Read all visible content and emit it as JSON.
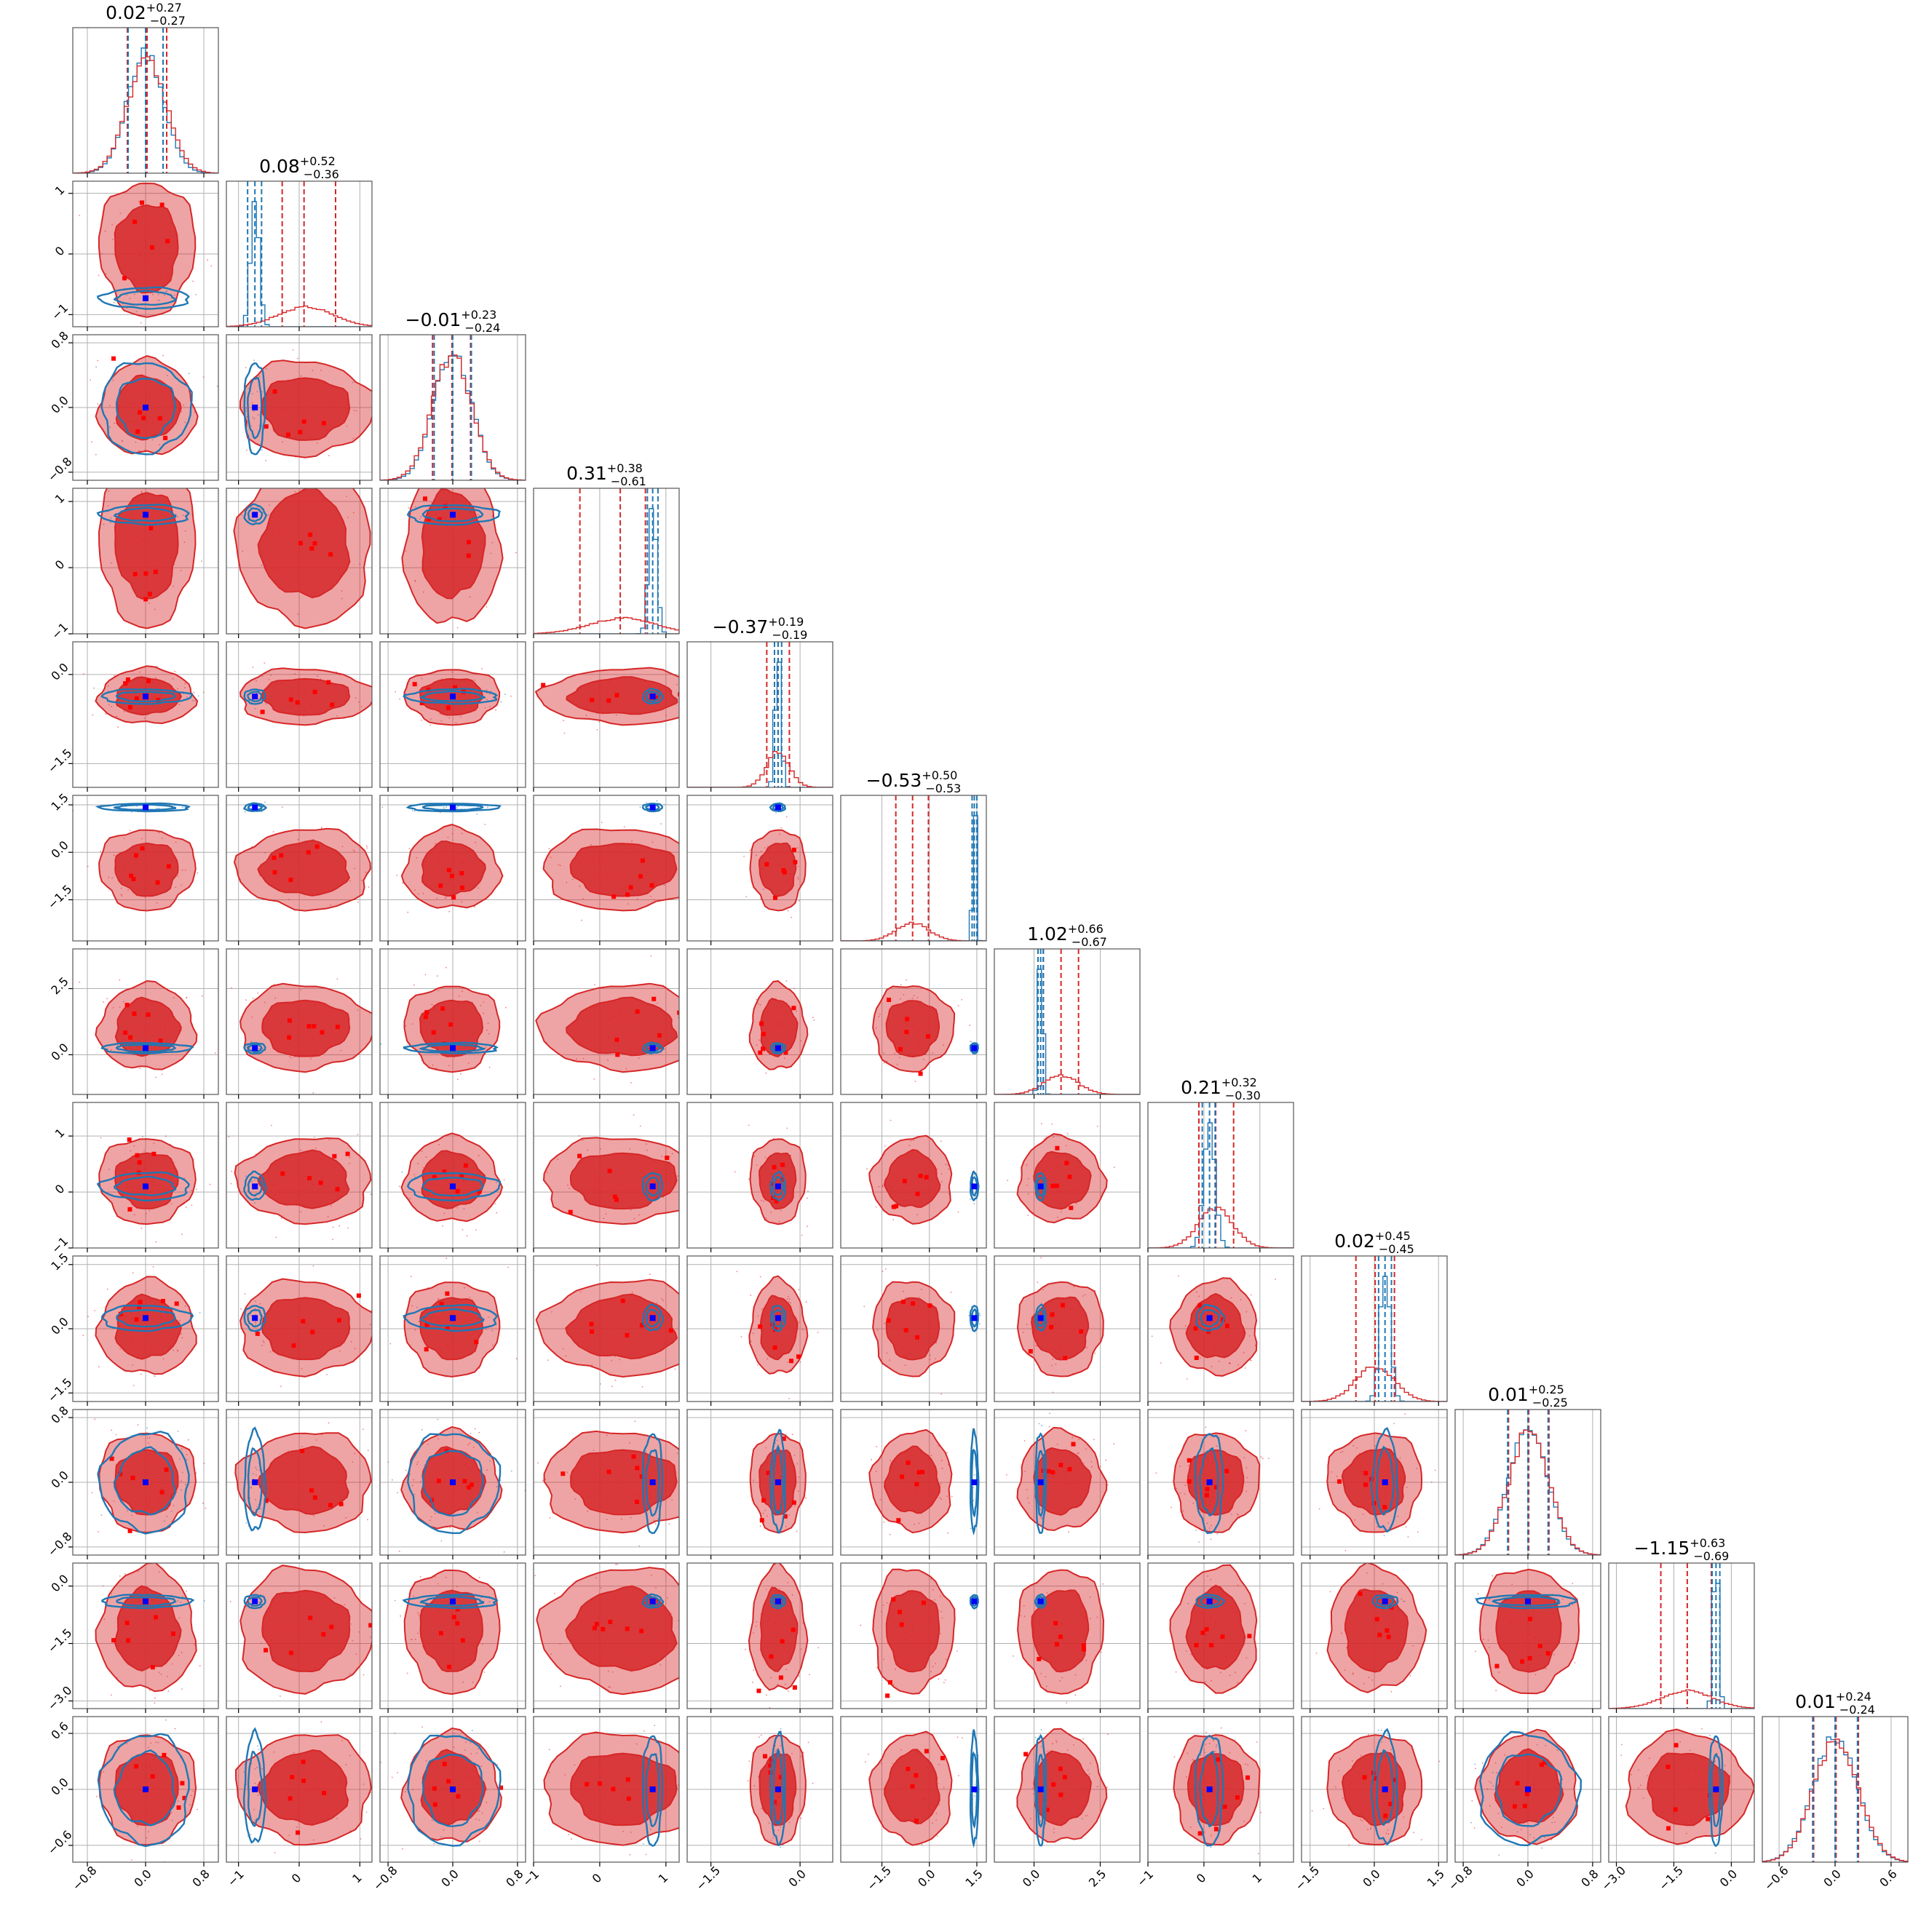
{
  "chart_data": {
    "type": "corner",
    "n_params": 12,
    "grid": true,
    "colors": {
      "posterior_a": "#d62728",
      "posterior_b": "#1f77b4",
      "truth_a": "#ff0000",
      "truth_b": "#0000ff",
      "gridline": "#b0b0b0",
      "frame": "#555555"
    },
    "params": [
      {
        "range": [
          -1.0,
          1.0
        ],
        "ticks": [
          -0.8,
          0.0,
          0.8
        ],
        "tick_labels": [
          "−0.8",
          "0.0",
          "0.8"
        ],
        "title": {
          "value": "0.02",
          "plus": "+0.27",
          "minus": "−0.27"
        },
        "a": {
          "mean": 0.02,
          "sd": 0.27,
          "q": [
            -0.25,
            0.02,
            0.29
          ]
        },
        "b": {
          "mean": 0.0,
          "sd": 0.25,
          "q": [
            -0.24,
            0.0,
            0.24
          ]
        }
      },
      {
        "range": [
          -1.2,
          1.2
        ],
        "ticks": [
          -1,
          0,
          1
        ],
        "tick_labels": [
          "−1",
          "0",
          "1"
        ],
        "title": {
          "value": "0.08",
          "plus": "+0.52",
          "minus": "−0.36"
        },
        "a": {
          "mean": 0.1,
          "sd": 0.45,
          "q": [
            -0.28,
            0.08,
            0.6
          ]
        },
        "b": {
          "mean": -0.73,
          "sd": 0.07,
          "q": [
            -0.85,
            -0.73,
            -0.62
          ]
        }
      },
      {
        "range": [
          -0.9,
          0.9
        ],
        "ticks": [
          -0.8,
          0.0,
          0.8
        ],
        "tick_labels": [
          "−0.8",
          "0.0",
          "0.8"
        ],
        "title": {
          "value": "−0.01",
          "plus": "+0.23",
          "minus": "−0.24"
        },
        "a": {
          "mean": -0.01,
          "sd": 0.24,
          "q": [
            -0.25,
            -0.01,
            0.22
          ]
        },
        "b": {
          "mean": 0.0,
          "sd": 0.23,
          "q": [
            -0.23,
            0.0,
            0.23
          ]
        }
      },
      {
        "range": [
          -1.0,
          1.2
        ],
        "ticks": [
          -1,
          0,
          1
        ],
        "tick_labels": [
          "−1",
          "0",
          "1"
        ],
        "title": {
          "value": "0.31",
          "plus": "+0.38",
          "minus": "−0.61"
        },
        "a": {
          "mean": 0.35,
          "sd": 0.5,
          "q": [
            -0.3,
            0.31,
            0.69
          ]
        },
        "b": {
          "mean": 0.8,
          "sd": 0.06,
          "q": [
            0.72,
            0.8,
            0.88
          ]
        }
      },
      {
        "range": [
          -1.9,
          0.55
        ],
        "ticks": [
          -1.5,
          0.0
        ],
        "tick_labels": [
          "−1.5",
          "0.0"
        ],
        "title": {
          "value": "−0.37",
          "plus": "+0.19",
          "minus": "−0.19"
        },
        "a": {
          "mean": -0.37,
          "sd": 0.19,
          "q": [
            -0.56,
            -0.37,
            -0.18
          ]
        },
        "b": {
          "mean": -0.37,
          "sd": 0.05,
          "q": [
            -0.43,
            -0.37,
            -0.31
          ]
        }
      },
      {
        "range": [
          -2.8,
          1.8
        ],
        "ticks": [
          -1.5,
          0.0,
          1.5
        ],
        "tick_labels": [
          "−1.5",
          "0.0",
          "1.5"
        ],
        "title": {
          "value": "−0.53",
          "plus": "+0.50",
          "minus": "−0.53"
        },
        "a": {
          "mean": -0.53,
          "sd": 0.52,
          "q": [
            -1.06,
            -0.53,
            -0.03
          ]
        },
        "b": {
          "mean": 1.42,
          "sd": 0.05,
          "q": [
            1.35,
            1.42,
            1.5
          ]
        }
      },
      {
        "range": [
          -1.5,
          4.0
        ],
        "ticks": [
          0.0,
          2.5
        ],
        "tick_labels": [
          "0.0",
          "2.5"
        ],
        "title": {
          "value": "1.02",
          "plus": "+0.66",
          "minus": "−0.67"
        },
        "a": {
          "mean": 1.02,
          "sd": 0.66,
          "q": [
            0.35,
            1.02,
            1.68
          ]
        },
        "b": {
          "mean": 0.25,
          "sd": 0.08,
          "q": [
            0.15,
            0.25,
            0.35
          ]
        }
      },
      {
        "range": [
          -1.0,
          1.6
        ],
        "ticks": [
          -1,
          0,
          1
        ],
        "tick_labels": [
          "−1",
          "0",
          "1"
        ],
        "title": {
          "value": "0.21",
          "plus": "+0.32",
          "minus": "−0.30"
        },
        "a": {
          "mean": 0.21,
          "sd": 0.31,
          "q": [
            -0.09,
            0.21,
            0.53
          ]
        },
        "b": {
          "mean": 0.1,
          "sd": 0.1,
          "q": [
            -0.03,
            0.1,
            0.2
          ]
        }
      },
      {
        "range": [
          -1.7,
          1.7
        ],
        "ticks": [
          -1.5,
          0.0,
          1.5
        ],
        "tick_labels": [
          "−1.5",
          "0.0",
          "1.5"
        ],
        "title": {
          "value": "0.02",
          "plus": "+0.45",
          "minus": "−0.45"
        },
        "a": {
          "mean": 0.02,
          "sd": 0.45,
          "q": [
            -0.43,
            0.02,
            0.47
          ]
        },
        "b": {
          "mean": 0.25,
          "sd": 0.12,
          "q": [
            0.1,
            0.25,
            0.4
          ]
        }
      },
      {
        "range": [
          -0.9,
          0.9
        ],
        "ticks": [
          -0.8,
          0.0,
          0.8
        ],
        "tick_labels": [
          "−0.8",
          "0.0",
          "0.8"
        ],
        "title": {
          "value": "0.01",
          "plus": "+0.25",
          "minus": "−0.25"
        },
        "a": {
          "mean": 0.01,
          "sd": 0.25,
          "q": [
            -0.24,
            0.01,
            0.26
          ]
        },
        "b": {
          "mean": 0.0,
          "sd": 0.25,
          "q": [
            -0.25,
            0.0,
            0.25
          ]
        }
      },
      {
        "range": [
          -3.2,
          0.6
        ],
        "ticks": [
          -3.0,
          -1.5,
          0.0
        ],
        "tick_labels": [
          "−3.0",
          "−1.5",
          "0.0"
        ],
        "title": {
          "value": "−1.15",
          "plus": "+0.63",
          "minus": "−0.69"
        },
        "a": {
          "mean": -1.15,
          "sd": 0.66,
          "q": [
            -1.84,
            -1.15,
            -0.52
          ]
        },
        "b": {
          "mean": -0.4,
          "sd": 0.07,
          "q": [
            -0.5,
            -0.4,
            -0.3
          ]
        }
      },
      {
        "range": [
          -0.78,
          0.78
        ],
        "ticks": [
          -0.6,
          0.0,
          0.6
        ],
        "tick_labels": [
          "−0.6",
          "0.0",
          "0.6"
        ],
        "title": {
          "value": "0.01",
          "plus": "+0.24",
          "minus": "−0.24"
        },
        "a": {
          "mean": 0.01,
          "sd": 0.24,
          "q": [
            -0.23,
            0.01,
            0.25
          ]
        },
        "b": {
          "mean": 0.0,
          "sd": 0.24,
          "q": [
            -0.24,
            0.0,
            0.24
          ]
        }
      }
    ]
  }
}
